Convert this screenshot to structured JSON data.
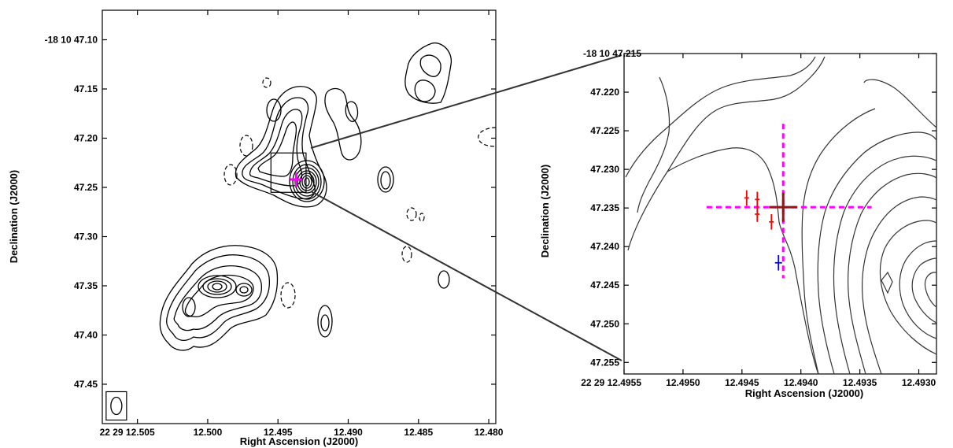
{
  "chart_data": [
    {
      "type": "contour",
      "panel": "left",
      "xlabel": "Right Ascension (J2000)",
      "ylabel": "Declination (J2000)",
      "x_ticks": [
        "22 29 12.505",
        "12.500",
        "12.495",
        "12.490",
        "12.485",
        "12.480"
      ],
      "y_ticks": [
        "-18 10 47.10",
        "47.15",
        "47.20",
        "47.25",
        "47.30",
        "47.35",
        "47.40",
        "47.45"
      ],
      "x_tick_values": [
        12.505,
        12.5,
        12.495,
        12.49,
        12.485,
        12.48
      ],
      "y_tick_values": [
        47.1,
        47.15,
        47.2,
        47.25,
        47.3,
        47.35,
        47.4,
        47.45
      ],
      "xlim": [
        12.5075,
        12.4795
      ],
      "ylim": [
        47.49,
        47.07
      ],
      "zoom_box": {
        "x": [
          12.4955,
          12.493
        ],
        "y": [
          47.215,
          47.255
        ]
      },
      "markers": [
        {
          "name": "position",
          "ra": 12.4937,
          "dec": 47.242,
          "color": "#ff00ff"
        }
      ],
      "beam": {
        "ra": 12.5065,
        "dec": 47.472,
        "major": 0.02,
        "minor": 0.0007
      }
    },
    {
      "type": "contour",
      "panel": "right",
      "xlabel": "Right Ascension (J2000)",
      "ylabel": "Declination (J2000)",
      "x_ticks": [
        "22 29 12.4955",
        "12.4950",
        "12.4945",
        "12.4940",
        "12.4935",
        "12.4930"
      ],
      "y_ticks": [
        "-18 10 47.215",
        "47.220",
        "47.225",
        "47.230",
        "47.235",
        "47.240",
        "47.245",
        "47.250",
        "47.255"
      ],
      "x_tick_values": [
        12.4955,
        12.495,
        12.4945,
        12.494,
        12.4935,
        12.493
      ],
      "y_tick_values": [
        47.215,
        47.22,
        47.225,
        47.23,
        47.235,
        47.24,
        47.245,
        47.25,
        47.255
      ],
      "xlim": [
        12.4955,
        12.49285
      ],
      "ylim": [
        47.2565,
        47.215
      ],
      "markers": [
        {
          "name": "red-cross-1",
          "ra": 12.49446,
          "dec": 47.2337,
          "err_ra": 2e-05,
          "err_dec": 0.001,
          "color": "#ff0000"
        },
        {
          "name": "red-cross-2",
          "ra": 12.49437,
          "dec": 47.2339,
          "err_ra": 2e-05,
          "err_dec": 0.001,
          "color": "#ff0000"
        },
        {
          "name": "red-cross-3",
          "ra": 12.49437,
          "dec": 47.2358,
          "err_ra": 2e-05,
          "err_dec": 0.001,
          "color": "#ff0000"
        },
        {
          "name": "red-cross-4",
          "ra": 12.49425,
          "dec": 47.2368,
          "err_ra": 2e-05,
          "err_dec": 0.001,
          "color": "#ff0000"
        },
        {
          "name": "brown-cross",
          "ra": 12.49415,
          "dec": 47.2349,
          "err_ra": 0.00012,
          "err_dec": 0.0019,
          "color": "#8b1a1a"
        },
        {
          "name": "blue-cross",
          "ra": 12.49419,
          "dec": 47.2421,
          "err_ra": 3e-05,
          "err_dec": 0.001,
          "color": "#0000ff"
        }
      ],
      "dashed_lines": [
        {
          "orientation": "horizontal",
          "dec": 47.2349,
          "ra_range": [
            12.4948,
            12.4934
          ],
          "color": "#ff00ff"
        },
        {
          "orientation": "vertical",
          "ra": 12.49415,
          "dec_range": [
            47.2241,
            47.2441
          ],
          "color": "#ff00ff"
        }
      ]
    }
  ]
}
